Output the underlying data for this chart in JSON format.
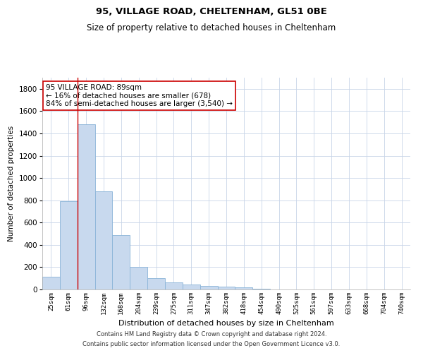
{
  "title1": "95, VILLAGE ROAD, CHELTENHAM, GL51 0BE",
  "title2": "Size of property relative to detached houses in Cheltenham",
  "xlabel": "Distribution of detached houses by size in Cheltenham",
  "ylabel": "Number of detached properties",
  "categories": [
    "25sqm",
    "61sqm",
    "96sqm",
    "132sqm",
    "168sqm",
    "204sqm",
    "239sqm",
    "275sqm",
    "311sqm",
    "347sqm",
    "382sqm",
    "418sqm",
    "454sqm",
    "490sqm",
    "525sqm",
    "561sqm",
    "597sqm",
    "633sqm",
    "668sqm",
    "704sqm",
    "740sqm"
  ],
  "values": [
    115,
    790,
    1480,
    880,
    490,
    205,
    100,
    65,
    42,
    32,
    28,
    18,
    4,
    0,
    0,
    0,
    0,
    0,
    0,
    0,
    0
  ],
  "bar_color": "#c8d9ee",
  "bar_edge_color": "#8ab4d8",
  "vline_x_index": 2,
  "vline_color": "#cc0000",
  "annotation_text": "95 VILLAGE ROAD: 89sqm\n← 16% of detached houses are smaller (678)\n84% of semi-detached houses are larger (3,540) →",
  "annotation_box_color": "#ffffff",
  "annotation_box_edge": "#cc0000",
  "ylim": [
    0,
    1900
  ],
  "yticks": [
    0,
    200,
    400,
    600,
    800,
    1000,
    1200,
    1400,
    1600,
    1800
  ],
  "footnote1": "Contains HM Land Registry data © Crown copyright and database right 2024.",
  "footnote2": "Contains public sector information licensed under the Open Government Licence v3.0.",
  "bg_color": "#ffffff",
  "grid_color": "#c8d4e8"
}
